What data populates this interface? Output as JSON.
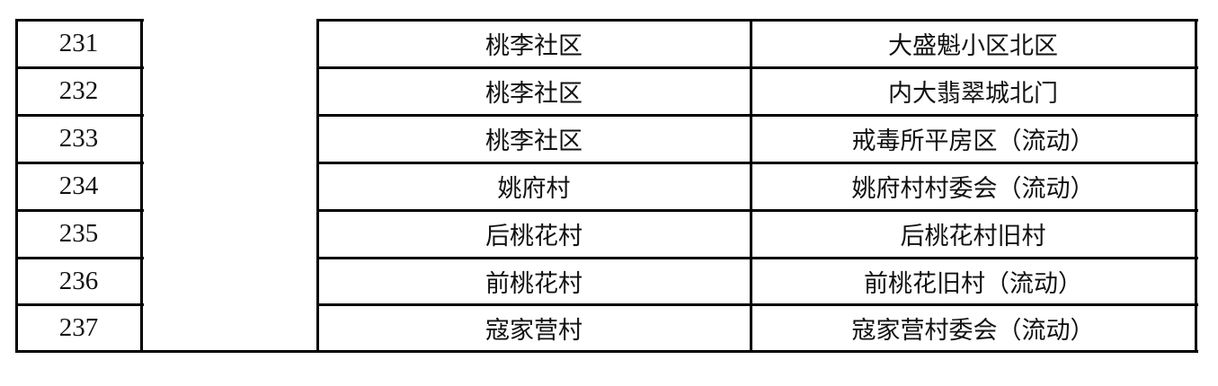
{
  "table": {
    "rows": [
      {
        "no": "231",
        "community": "桃李社区",
        "location": "大盛魁小区北区"
      },
      {
        "no": "232",
        "community": "桃李社区",
        "location": "内大翡翠城北门"
      },
      {
        "no": "233",
        "community": "桃李社区",
        "location": "戒毒所平房区（流动）"
      },
      {
        "no": "234",
        "community": "姚府村",
        "location": "姚府村村委会（流动）"
      },
      {
        "no": "235",
        "community": "后桃花村",
        "location": "后桃花村旧村"
      },
      {
        "no": "236",
        "community": "前桃花村",
        "location": "前桃花旧村（流动）"
      },
      {
        "no": "237",
        "community": "寇家营村",
        "location": "寇家营村委会（流动）"
      }
    ]
  }
}
